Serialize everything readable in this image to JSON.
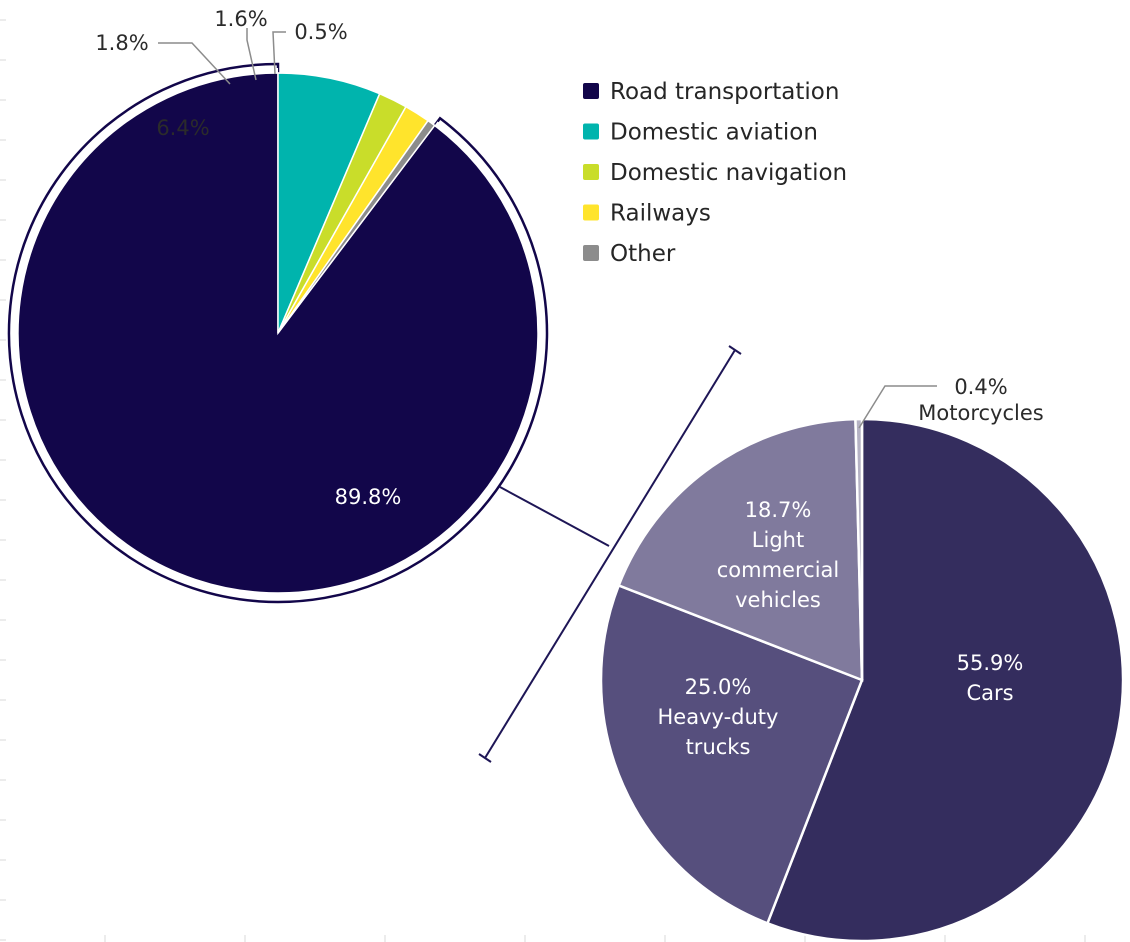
{
  "chart_data": [
    {
      "type": "pie",
      "role": "primary",
      "slices": [
        {
          "name": "Road transportation",
          "value": 89.8,
          "label": "89.8%",
          "color": "#12064a"
        },
        {
          "name": "Domestic aviation",
          "value": 6.4,
          "label": "6.4%",
          "color": "#00b4ad"
        },
        {
          "name": "Domestic navigation",
          "value": 1.8,
          "label": "1.8%",
          "color": "#c9dd2a"
        },
        {
          "name": "Railways",
          "value": 1.6,
          "label": "1.6%",
          "color": "#ffe42c"
        },
        {
          "name": "Other",
          "value": 0.5,
          "label": "0.5%",
          "color": "#8c8c8c"
        }
      ],
      "legend_position": "top-right",
      "exploded_slice": "Road transportation"
    },
    {
      "type": "pie",
      "role": "breakdown of Road transportation",
      "slices": [
        {
          "name": "Cars",
          "value": 55.9,
          "label": "55.9%",
          "color": "#342d5e"
        },
        {
          "name": "Heavy-duty trucks",
          "value": 25.0,
          "label": "25.0%",
          "color": "#564f7d"
        },
        {
          "name": "Light commercial vehicles",
          "value": 18.7,
          "label": "18.7%",
          "color": "#807a9d"
        },
        {
          "name": "Motorcycles",
          "value": 0.4,
          "label": "0.4%",
          "color": "#b5b2c4"
        }
      ],
      "slice_label_lines": {
        "Cars": [
          "55.9%",
          "Cars"
        ],
        "Heavy-duty trucks": [
          "25.0%",
          "Heavy-duty",
          "trucks"
        ],
        "Light commercial vehicles": [
          "18.7%",
          "Light",
          "commercial",
          "vehicles"
        ],
        "Motorcycles": [
          "0.4%",
          "Motorcycles"
        ]
      }
    }
  ]
}
